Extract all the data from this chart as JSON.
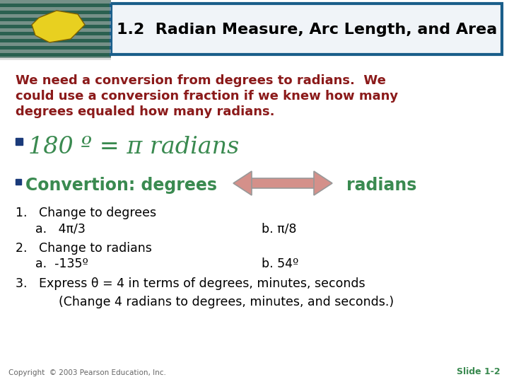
{
  "title": "1.2  Radian Measure, Arc Length, and Area",
  "title_box_edge_color": "#1a5e8a",
  "title_box_face_color": "#f0f4f8",
  "title_text_color": "#000000",
  "bg_color": "#ffffff",
  "intro_text_line1": "We need a conversion from degrees to radians.  We",
  "intro_text_line2": "could use a conversion fraction if we knew how many",
  "intro_text_line3": "degrees equaled how many radians.",
  "intro_color": "#8b1a1a",
  "bullet1_text": "180 º = π radians",
  "bullet1_color": "#3a8a50",
  "bullet_square_color": "#1a3a7a",
  "convertion_label": "Convertion: degrees",
  "convertion_color": "#3a8a50",
  "radians_label": "radians",
  "radians_color": "#3a8a50",
  "arrow_fill_color": "#d4908a",
  "arrow_edge_color": "#999999",
  "item1_header": "1.   Change to degrees",
  "item1a": "a.   4π/3",
  "item1b": "b. π/8",
  "item2_header": "2.   Change to radians",
  "item2a": "a.  -135º",
  "item2b": "b. 54º",
  "item3": "3.   Express θ = 4 in terms of degrees, minutes, seconds",
  "item3_sub": "      (Change 4 radians to degrees, minutes, and seconds.)",
  "body_color": "#000000",
  "copyright": "Copyright  © 2003 Pearson Education, Inc.",
  "slide_num": "Slide 1-2",
  "slide_num_color": "#3a8a50",
  "footer_color": "#666666",
  "img_bg_color": "#2a6050",
  "img_stripe_color": "#aaaaaa"
}
